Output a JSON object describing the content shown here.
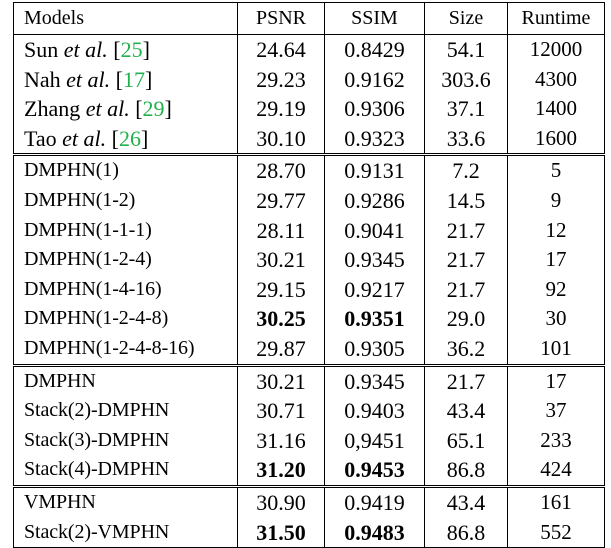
{
  "table": {
    "headers": [
      "Models",
      "PSNR",
      "SSIM",
      "Size",
      "Runtime"
    ],
    "groups": [
      [
        {
          "model": "Sun",
          "etal": "et al.",
          "cite": "25",
          "psnr": "24.64",
          "ssim": "0.8429",
          "size": "54.1",
          "runtime": "12000"
        },
        {
          "model": "Nah",
          "etal": "et al.",
          "cite": "17",
          "psnr": "29.23",
          "ssim": "0.9162",
          "size": "303.6",
          "runtime": "4300"
        },
        {
          "model": "Zhang",
          "etal": "et al.",
          "cite": "29",
          "psnr": "29.19",
          "ssim": "0.9306",
          "size": "37.1",
          "runtime": "1400"
        },
        {
          "model": "Tao",
          "etal": "et al.",
          "cite": "26",
          "psnr": "30.10",
          "ssim": "0.9323",
          "size": "33.6",
          "runtime": "1600"
        }
      ],
      [
        {
          "model": "DMPHN(1)",
          "psnr": "28.70",
          "ssim": "0.9131",
          "size": "7.2",
          "runtime": "5"
        },
        {
          "model": "DMPHN(1-2)",
          "psnr": "29.77",
          "ssim": "0.9286",
          "size": "14.5",
          "runtime": "9"
        },
        {
          "model": "DMPHN(1-1-1)",
          "psnr": "28.11",
          "ssim": "0.9041",
          "size": "21.7",
          "runtime": "12"
        },
        {
          "model": "DMPHN(1-2-4)",
          "psnr": "30.21",
          "ssim": "0.9345",
          "size": "21.7",
          "runtime": "17"
        },
        {
          "model": "DMPHN(1-4-16)",
          "psnr": "29.15",
          "ssim": "0.9217",
          "size": "21.7",
          "runtime": "92"
        },
        {
          "model": "DMPHN(1-2-4-8)",
          "psnr": "30.25",
          "ssim": "0.9351",
          "size": "29.0",
          "runtime": "30",
          "bold": true
        },
        {
          "model": "DMPHN(1-2-4-8-16)",
          "psnr": "29.87",
          "ssim": "0.9305",
          "size": "36.2",
          "runtime": "101"
        }
      ],
      [
        {
          "model": "DMPHN",
          "psnr": "30.21",
          "ssim": "0.9345",
          "size": "21.7",
          "runtime": "17"
        },
        {
          "model": "Stack(2)-DMPHN",
          "psnr": "30.71",
          "ssim": "0.9403",
          "size": "43.4",
          "runtime": "37"
        },
        {
          "model": "Stack(3)-DMPHN",
          "psnr": "31.16",
          "ssim": "0,9451",
          "size": "65.1",
          "runtime": "233"
        },
        {
          "model": "Stack(4)-DMPHN",
          "psnr": "31.20",
          "ssim": "0.9453",
          "size": "86.8",
          "runtime": "424",
          "bold": true
        }
      ],
      [
        {
          "model": "VMPHN",
          "psnr": "30.90",
          "ssim": "0.9419",
          "size": "43.4",
          "runtime": "161"
        },
        {
          "model": "Stack(2)-VMPHN",
          "psnr": "31.50",
          "ssim": "0.9483",
          "size": "86.8",
          "runtime": "552",
          "bold": true
        }
      ]
    ]
  }
}
